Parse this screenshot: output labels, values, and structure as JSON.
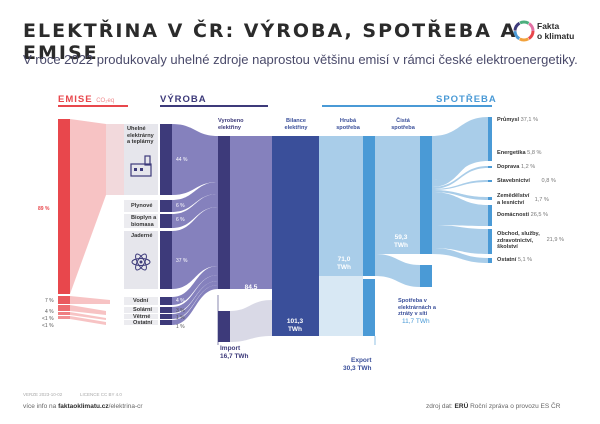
{
  "header": {
    "title": "ELEKTŘINA V ČR: VÝROBA, SPOTŘEBA A EMISE",
    "subtitle": "V roce 2022 produkovaly uhelné zdroje naprostou většinu emisí v rámci české elektroenergetiky.",
    "logo_line1": "Fakta",
    "logo_line2": "o klimatu"
  },
  "sections": {
    "emise": "EMISE",
    "emise_unit": "CO₂eq",
    "vyroba": "VÝROBA",
    "spotreba": "SPOTŘEBA"
  },
  "emise_pcts": {
    "uhelne": "89 %",
    "plynove": "7 %",
    "biomasa": "4 %",
    "vodni": "<1 %",
    "ostatni": "<1 %"
  },
  "sources": [
    {
      "label": "Uhelné elektrárny a teplárny",
      "pct": "44 %"
    },
    {
      "label": "Plynové",
      "pct": "6 %"
    },
    {
      "label": "Bioplyn a biomasa",
      "pct": "6 %"
    },
    {
      "label": "Jaderné",
      "pct": "37 %"
    },
    {
      "label": "Vodní",
      "pct": "4 %"
    },
    {
      "label": "Solární",
      "pct": "3 %"
    },
    {
      "label": "Větrné",
      "pct": "1 %"
    },
    {
      "label": "Ostatní",
      "pct": "1 %"
    }
  ],
  "columns": {
    "vyrobeno": "Vyrobeno elektřiny",
    "vyrobeno_val": "84,5",
    "twh": "TWh",
    "bilance": "Bilance elektřiny",
    "bilance_val": "101,3",
    "hruba": "Hrubá spotřeba",
    "hruba_val": "71,0",
    "cista": "Čistá spotřeba",
    "cista_val": "59,3",
    "import": "Import",
    "import_val": "16,7 TWh",
    "export": "Export",
    "export_val": "30,3 TWh",
    "ztraty": "Spotřeba v elektrárnách a ztráty v síti",
    "ztraty_val": "11,7 TWh"
  },
  "consumers": [
    {
      "label": "Průmysl",
      "pct": "37,1 %"
    },
    {
      "label": "Energetika",
      "pct": "5,8 %"
    },
    {
      "label": "Doprava",
      "pct": "1,2 %"
    },
    {
      "label": "Stavebnictví",
      "pct": "0,8 %"
    },
    {
      "label": "Zemědělství a lesnictví",
      "pct": "1,7 %"
    },
    {
      "label": "Domácnosti",
      "pct": "26,5 %"
    },
    {
      "label": "Obchod, služby, zdravotnictví, školství",
      "pct": "21,9 %"
    },
    {
      "label": "Ostatní",
      "pct": "5,1 %"
    }
  ],
  "footer": {
    "version": "VERZE 2023-10-02",
    "license": "LICENCE CC BY 4.0",
    "more_prefix": "více info na ",
    "more_link": "faktaoklimatu.cz",
    "more_suffix": "/elektrina-cr",
    "source_prefix": "zdroj dat: ",
    "source_bold": "ERÚ",
    "source_rest": " Roční zpráva o provozu ES ČR"
  },
  "colors": {
    "emise": "#e8474c",
    "emise_light": "#f7c3c4",
    "vyroba": "#3d3a7a",
    "vyroba_flow": "#8581bd",
    "bilance": "#3a4f9a",
    "spotreba": "#4a9ad6",
    "spotreba_light": "#a9cde9"
  }
}
